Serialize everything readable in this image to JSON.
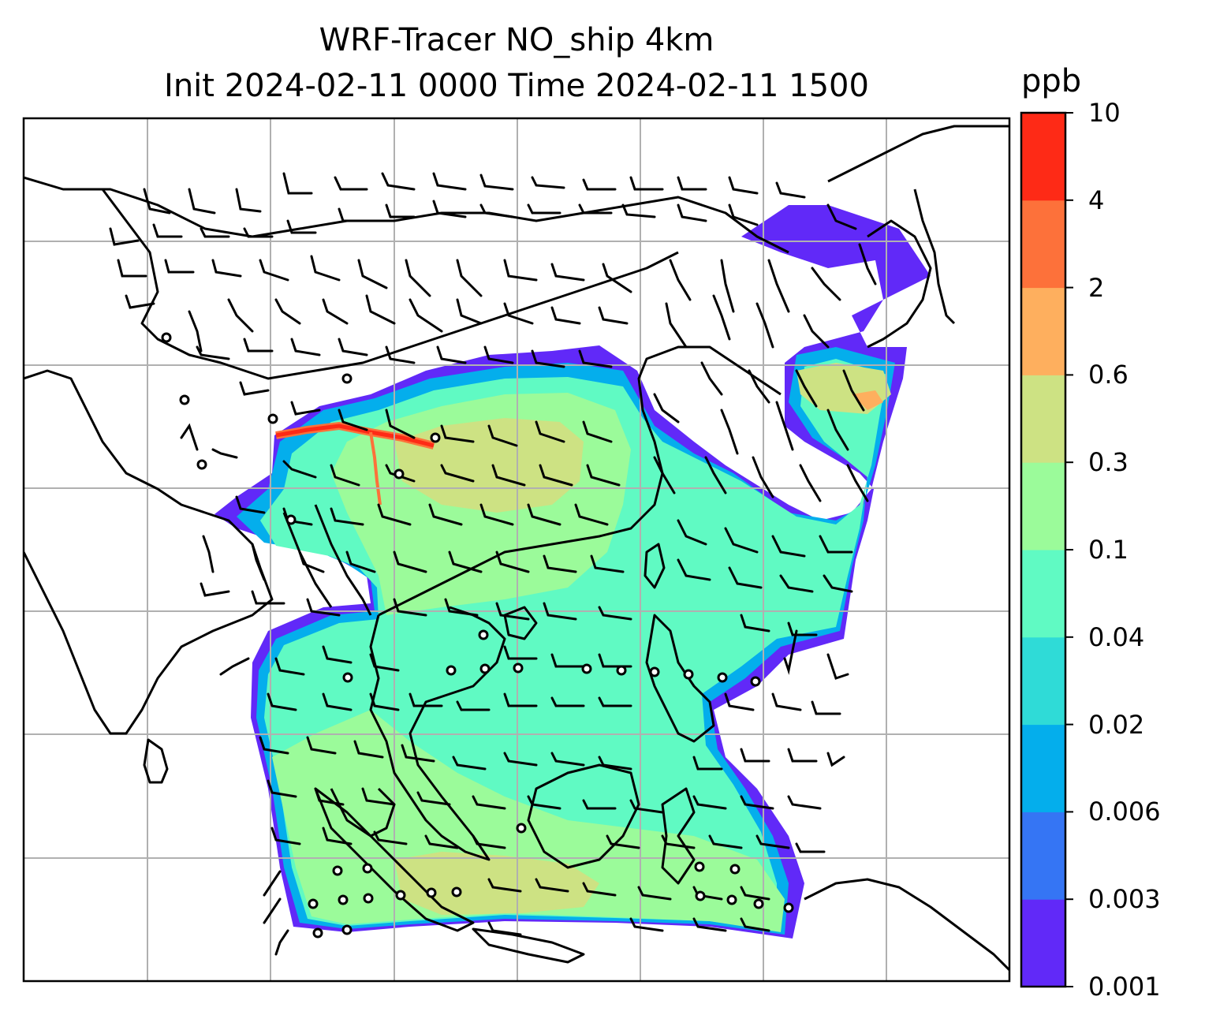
{
  "title_line1": "WRF-Tracer NO_ship 4km",
  "title_line2": "Init 2024-02-11 0000 Time 2024-02-11 1500",
  "colorbar": {
    "unit": "ppb",
    "levels": [
      "0.001",
      "0.003",
      "0.006",
      "0.02",
      "0.04",
      "0.1",
      "0.3",
      "0.6",
      "2",
      "4",
      "10"
    ],
    "colors": [
      "#6129f8",
      "#3575f4",
      "#04aeec",
      "#2fdbd7",
      "#60fac3",
      "#9bfb9a",
      "#cde283",
      "#feaf5e",
      "#fd713a",
      "#fe2a16"
    ]
  },
  "map": {
    "gridlines": true,
    "grid_color": "#b0b0b0",
    "coastline_color": "#000000",
    "field_name": "NO_ship",
    "overlay": "wind-barbs"
  }
}
